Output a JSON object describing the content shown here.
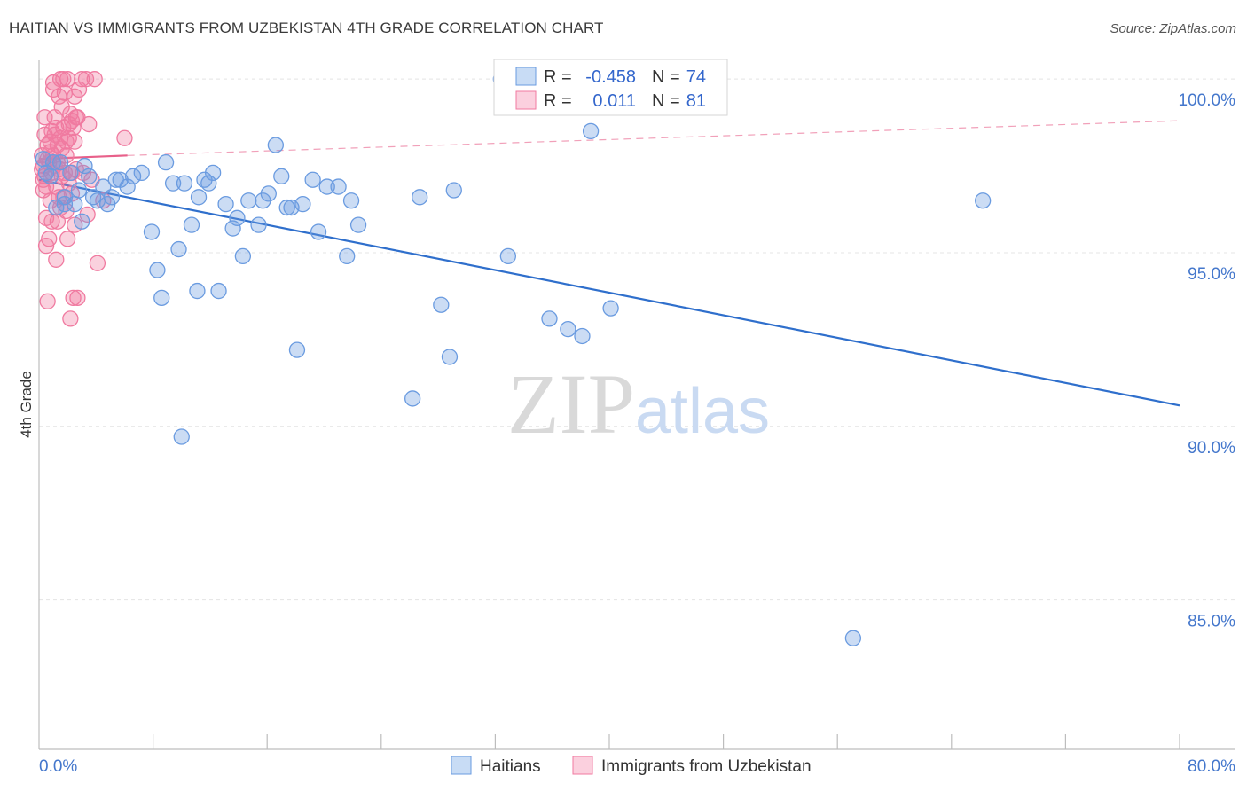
{
  "chart_data": {
    "type": "scatter",
    "title": "HAITIAN VS IMMIGRANTS FROM UZBEKISTAN 4TH GRADE CORRELATION CHART",
    "source": "Source: ZipAtlas.com",
    "xlabel": "",
    "ylabel": "4th Grade",
    "xlim": [
      0,
      80
    ],
    "ylim": [
      80.7,
      101.0
    ],
    "x_tick_labels": [
      "0.0%",
      "80.0%"
    ],
    "y_ticks": [
      85,
      90,
      95,
      100
    ],
    "y_tick_labels": [
      "85.0%",
      "90.0%",
      "95.0%",
      "100.0%"
    ],
    "grid": true,
    "watermark": "ZIPatlas",
    "colors": {
      "haitians": "#6a9be0",
      "uzbekistan": "#f07aa0",
      "haitians_line": "#2f6fcc",
      "uzbekistan_line": "#e8608a"
    },
    "stats": [
      {
        "r_label": "R =",
        "r_value": "-0.458",
        "n_label": "N =",
        "n_value": "74"
      },
      {
        "r_label": "R =",
        "r_value": "0.011",
        "n_label": "N =",
        "n_value": "81"
      }
    ],
    "legend": [
      "Haitians",
      "Immigrants from Uzbekistan"
    ],
    "series": [
      {
        "name": "Haitians",
        "trend": {
          "x": [
            0,
            80
          ],
          "y": [
            97.1,
            90.6
          ],
          "style": "solid"
        },
        "points": [
          [
            0.3,
            97.7
          ],
          [
            0.5,
            97.3
          ],
          [
            0.8,
            97.2
          ],
          [
            1.0,
            97.6
          ],
          [
            1.2,
            96.3
          ],
          [
            1.5,
            97.6
          ],
          [
            1.8,
            96.6
          ],
          [
            2.2,
            97.3
          ],
          [
            2.5,
            96.4
          ],
          [
            2.8,
            96.8
          ],
          [
            3.2,
            97.5
          ],
          [
            3.5,
            97.2
          ],
          [
            3.8,
            96.6
          ],
          [
            4.1,
            96.5
          ],
          [
            4.5,
            96.9
          ],
          [
            4.8,
            96.4
          ],
          [
            5.1,
            96.6
          ],
          [
            5.4,
            97.1
          ],
          [
            5.7,
            97.1
          ],
          [
            6.2,
            96.9
          ],
          [
            6.6,
            97.2
          ],
          [
            7.2,
            97.3
          ],
          [
            7.9,
            95.6
          ],
          [
            8.3,
            94.5
          ],
          [
            8.6,
            93.7
          ],
          [
            8.9,
            97.6
          ],
          [
            9.4,
            97.0
          ],
          [
            9.8,
            95.1
          ],
          [
            10.2,
            97.0
          ],
          [
            10.7,
            95.8
          ],
          [
            11.1,
            93.9
          ],
          [
            11.2,
            96.6
          ],
          [
            11.6,
            97.1
          ],
          [
            11.9,
            97.0
          ],
          [
            12.2,
            97.3
          ],
          [
            12.6,
            93.9
          ],
          [
            13.1,
            96.4
          ],
          [
            13.6,
            95.7
          ],
          [
            13.9,
            96.0
          ],
          [
            14.3,
            94.9
          ],
          [
            14.7,
            96.5
          ],
          [
            15.4,
            95.8
          ],
          [
            15.7,
            96.5
          ],
          [
            16.1,
            96.7
          ],
          [
            16.6,
            98.1
          ],
          [
            17.0,
            97.2
          ],
          [
            17.4,
            96.3
          ],
          [
            17.7,
            96.3
          ],
          [
            18.1,
            92.2
          ],
          [
            18.5,
            96.4
          ],
          [
            19.2,
            97.1
          ],
          [
            19.6,
            95.6
          ],
          [
            20.2,
            96.9
          ],
          [
            21.0,
            96.9
          ],
          [
            21.6,
            94.9
          ],
          [
            21.9,
            96.5
          ],
          [
            22.4,
            95.8
          ],
          [
            26.2,
            90.8
          ],
          [
            26.7,
            96.6
          ],
          [
            28.2,
            93.5
          ],
          [
            28.8,
            92.0
          ],
          [
            29.1,
            96.8
          ],
          [
            32.4,
            100.0
          ],
          [
            32.9,
            94.9
          ],
          [
            35.8,
            93.1
          ],
          [
            37.1,
            92.8
          ],
          [
            38.1,
            92.6
          ],
          [
            38.7,
            98.5
          ],
          [
            40.1,
            93.4
          ],
          [
            57.1,
            83.9
          ],
          [
            66.2,
            96.5
          ],
          [
            1.8,
            96.4
          ],
          [
            3.0,
            95.9
          ],
          [
            10.0,
            89.7
          ]
        ]
      },
      {
        "name": "Immigrants from Uzbekistan",
        "trend": {
          "x": [
            0,
            6.2
          ],
          "y": [
            97.7,
            97.8
          ],
          "style": "solid",
          "extension": {
            "x": [
              6.2,
              80
            ],
            "y": [
              97.8,
              98.8
            ],
            "style": "dashed"
          }
        },
        "points": [
          [
            0.2,
            97.8
          ],
          [
            0.3,
            97.5
          ],
          [
            0.3,
            97.1
          ],
          [
            0.4,
            98.4
          ],
          [
            0.4,
            98.9
          ],
          [
            0.5,
            96.0
          ],
          [
            0.5,
            95.2
          ],
          [
            0.6,
            97.7
          ],
          [
            0.6,
            93.6
          ],
          [
            0.7,
            95.4
          ],
          [
            0.8,
            97.9
          ],
          [
            0.8,
            98.2
          ],
          [
            0.9,
            98.5
          ],
          [
            0.9,
            97.3
          ],
          [
            1.0,
            99.7
          ],
          [
            1.0,
            99.9
          ],
          [
            1.1,
            98.9
          ],
          [
            1.1,
            97.5
          ],
          [
            1.2,
            96.9
          ],
          [
            1.2,
            94.8
          ],
          [
            1.3,
            98.1
          ],
          [
            1.3,
            95.9
          ],
          [
            1.4,
            99.5
          ],
          [
            1.4,
            96.6
          ],
          [
            1.5,
            100.0
          ],
          [
            1.5,
            98.3
          ],
          [
            1.6,
            97.2
          ],
          [
            1.6,
            99.2
          ],
          [
            1.7,
            100.0
          ],
          [
            1.7,
            98.6
          ],
          [
            1.8,
            97.3
          ],
          [
            1.8,
            99.6
          ],
          [
            1.9,
            98.2
          ],
          [
            1.9,
            96.2
          ],
          [
            2.0,
            100.0
          ],
          [
            2.0,
            95.4
          ],
          [
            2.1,
            98.7
          ],
          [
            2.1,
            97.0
          ],
          [
            2.2,
            99.0
          ],
          [
            2.2,
            93.1
          ],
          [
            2.3,
            98.8
          ],
          [
            2.3,
            96.7
          ],
          [
            2.4,
            98.6
          ],
          [
            2.4,
            93.7
          ],
          [
            2.5,
            99.5
          ],
          [
            2.5,
            95.8
          ],
          [
            2.6,
            98.9
          ],
          [
            2.6,
            97.4
          ],
          [
            2.7,
            93.7
          ],
          [
            2.8,
            99.7
          ],
          [
            3.0,
            100.0
          ],
          [
            3.1,
            97.3
          ],
          [
            3.3,
            100.0
          ],
          [
            3.4,
            96.1
          ],
          [
            3.5,
            98.7
          ],
          [
            3.7,
            97.1
          ],
          [
            3.9,
            100.0
          ],
          [
            4.1,
            94.7
          ],
          [
            4.5,
            96.5
          ],
          [
            6.0,
            98.3
          ],
          [
            0.2,
            97.4
          ],
          [
            0.3,
            96.8
          ],
          [
            0.5,
            96.9
          ],
          [
            0.7,
            97.6
          ],
          [
            0.9,
            95.9
          ],
          [
            1.1,
            98.4
          ],
          [
            1.3,
            97.6
          ],
          [
            1.5,
            96.3
          ],
          [
            1.7,
            96.6
          ],
          [
            1.9,
            97.8
          ],
          [
            2.1,
            98.3
          ],
          [
            2.3,
            97.3
          ],
          [
            2.5,
            98.2
          ],
          [
            2.7,
            98.9
          ],
          [
            0.4,
            97.2
          ],
          [
            0.6,
            98.1
          ],
          [
            0.8,
            96.5
          ],
          [
            1.0,
            97.8
          ],
          [
            1.2,
            98.6
          ],
          [
            1.4,
            97.4
          ],
          [
            1.6,
            98.0
          ]
        ]
      }
    ]
  }
}
